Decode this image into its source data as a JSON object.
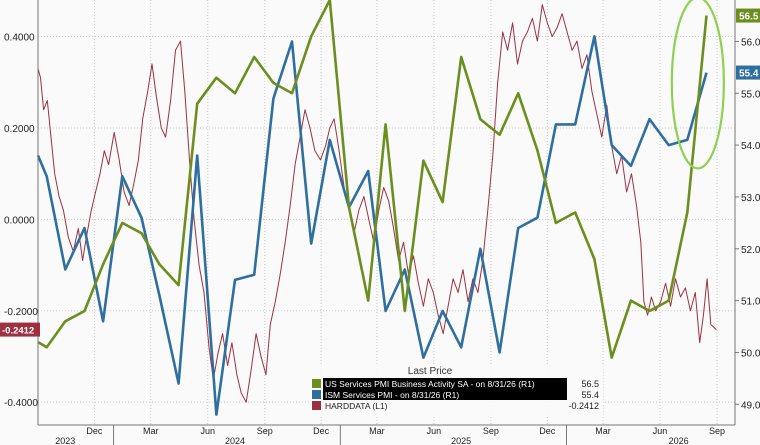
{
  "chart_data": {
    "type": "line",
    "x_range": [
      "2023-09-01",
      "2026-09-30"
    ],
    "left_axis": {
      "ticks": [
        0.4,
        0.2,
        0.0,
        -0.2,
        -0.4
      ],
      "tick_labels": [
        "0.4000",
        "0.2000",
        "0.0000",
        "-0.2000",
        "-0.4000"
      ],
      "range": [
        -0.45,
        0.48
      ]
    },
    "right_axis": {
      "ticks": [
        56.0,
        55.0,
        54.0,
        53.0,
        52.0,
        51.0,
        50.0,
        49.0
      ],
      "tick_labels": [
        "56.0",
        "55.0",
        "54.0",
        "53.0",
        "52.0",
        "51.0",
        "50.0",
        "49.0"
      ],
      "range": [
        48.6,
        56.8
      ]
    },
    "x_month_ticks": [
      {
        "date": "2023-12-01",
        "label": "Dec"
      },
      {
        "date": "2024-03-01",
        "label": "Mar"
      },
      {
        "date": "2024-06-01",
        "label": "Jun"
      },
      {
        "date": "2024-09-01",
        "label": "Sep"
      },
      {
        "date": "2024-12-01",
        "label": "Dec"
      },
      {
        "date": "2025-03-01",
        "label": "Mar"
      },
      {
        "date": "2025-06-01",
        "label": "Jun"
      },
      {
        "date": "2025-09-01",
        "label": "Sep"
      },
      {
        "date": "2025-12-01",
        "label": "Dec"
      },
      {
        "date": "2026-03-01",
        "label": "Mar"
      },
      {
        "date": "2026-06-01",
        "label": "Jun"
      },
      {
        "date": "2026-09-01",
        "label": "Sep"
      }
    ],
    "x_year_ticks": [
      {
        "date": "2023-10-15",
        "label": "2023"
      },
      {
        "date": "2024-07-15",
        "label": "2024"
      },
      {
        "date": "2025-07-15",
        "label": "2025"
      },
      {
        "date": "2026-07-01",
        "label": "2026"
      }
    ],
    "year_boundaries": [
      "2024-01-01",
      "2025-01-01",
      "2026-01-01"
    ],
    "series": [
      {
        "name": "US Services PMI Business Activity SA - on 8/31/26 (R1)",
        "axis": "right",
        "color": "#6b8e1f",
        "last_value": "56.5",
        "points": [
          [
            "2023-09-01",
            50.2
          ],
          [
            "2023-09-15",
            50.1
          ],
          [
            "2023-10-15",
            50.6
          ],
          [
            "2023-11-15",
            50.8
          ],
          [
            "2023-12-15",
            51.7
          ],
          [
            "2024-01-15",
            52.5
          ],
          [
            "2024-02-15",
            52.3
          ],
          [
            "2024-03-15",
            51.7
          ],
          [
            "2024-04-15",
            51.3
          ],
          [
            "2024-05-15",
            54.8
          ],
          [
            "2024-06-15",
            55.3
          ],
          [
            "2024-07-15",
            55.0
          ],
          [
            "2024-08-15",
            55.7
          ],
          [
            "2024-09-15",
            55.2
          ],
          [
            "2024-10-15",
            55.0
          ],
          [
            "2024-11-15",
            56.1
          ],
          [
            "2024-12-15",
            56.8
          ],
          [
            "2025-01-15",
            52.8
          ],
          [
            "2025-02-15",
            51.0
          ],
          [
            "2025-03-15",
            54.4
          ],
          [
            "2025-04-15",
            50.8
          ],
          [
            "2025-05-15",
            53.7
          ],
          [
            "2025-06-15",
            52.9
          ],
          [
            "2025-07-15",
            55.7
          ],
          [
            "2025-08-15",
            54.5
          ],
          [
            "2025-09-15",
            54.2
          ],
          [
            "2025-10-15",
            55.0
          ],
          [
            "2025-11-15",
            53.9
          ],
          [
            "2025-12-15",
            52.5
          ],
          [
            "2026-01-15",
            52.7
          ],
          [
            "2026-02-15",
            51.8
          ],
          [
            "2026-03-15",
            49.9
          ],
          [
            "2026-04-15",
            51.0
          ],
          [
            "2026-05-15",
            50.8
          ],
          [
            "2026-06-15",
            51.0
          ],
          [
            "2026-07-15",
            52.7
          ],
          [
            "2026-08-15",
            56.5
          ]
        ]
      },
      {
        "name": "ISM Services PMI - on 8/31/26 (R1)",
        "axis": "right",
        "color": "#2e6f9f",
        "last_value": "55.4",
        "points": [
          [
            "2023-09-01",
            53.8
          ],
          [
            "2023-09-15",
            53.4
          ],
          [
            "2023-10-15",
            51.6
          ],
          [
            "2023-11-15",
            52.4
          ],
          [
            "2023-12-15",
            50.6
          ],
          [
            "2024-01-15",
            53.4
          ],
          [
            "2024-02-15",
            52.6
          ],
          [
            "2024-03-15",
            51.1
          ],
          [
            "2024-04-15",
            49.4
          ],
          [
            "2024-05-15",
            53.8
          ],
          [
            "2024-06-15",
            48.8
          ],
          [
            "2024-07-15",
            51.4
          ],
          [
            "2024-08-15",
            51.5
          ],
          [
            "2024-09-15",
            54.9
          ],
          [
            "2024-10-15",
            56.0
          ],
          [
            "2024-11-15",
            52.1
          ],
          [
            "2024-12-15",
            54.1
          ],
          [
            "2025-01-15",
            52.8
          ],
          [
            "2025-02-15",
            53.5
          ],
          [
            "2025-03-15",
            50.8
          ],
          [
            "2025-04-15",
            51.6
          ],
          [
            "2025-05-15",
            49.9
          ],
          [
            "2025-06-15",
            50.8
          ],
          [
            "2025-07-15",
            50.1
          ],
          [
            "2025-08-15",
            52.0
          ],
          [
            "2025-09-15",
            50.0
          ],
          [
            "2025-10-15",
            52.4
          ],
          [
            "2025-11-15",
            52.6
          ],
          [
            "2025-12-15",
            54.4
          ],
          [
            "2026-01-15",
            54.4
          ],
          [
            "2026-02-15",
            56.1
          ],
          [
            "2026-03-15",
            54.0
          ],
          [
            "2026-04-15",
            53.6
          ],
          [
            "2026-05-15",
            54.5
          ],
          [
            "2026-06-15",
            54.0
          ],
          [
            "2026-07-15",
            54.1
          ],
          [
            "2026-08-15",
            55.4
          ]
        ]
      },
      {
        "name": "HARDDATA (L1)",
        "axis": "left",
        "color": "#9b3142",
        "last_value": "-0.2412",
        "points": [
          [
            "2023-09-01",
            0.33
          ],
          [
            "2023-09-05",
            0.31
          ],
          [
            "2023-09-10",
            0.24
          ],
          [
            "2023-09-16",
            0.26
          ],
          [
            "2023-09-22",
            0.18
          ],
          [
            "2023-09-28",
            0.1
          ],
          [
            "2023-10-05",
            0.05
          ],
          [
            "2023-10-12",
            0.02
          ],
          [
            "2023-10-20",
            -0.04
          ],
          [
            "2023-10-28",
            -0.07
          ],
          [
            "2023-11-05",
            -0.02
          ],
          [
            "2023-11-12",
            -0.09
          ],
          [
            "2023-11-18",
            -0.04
          ],
          [
            "2023-11-26",
            0.02
          ],
          [
            "2023-12-03",
            0.06
          ],
          [
            "2023-12-10",
            0.1
          ],
          [
            "2023-12-17",
            0.15
          ],
          [
            "2023-12-24",
            0.12
          ],
          [
            "2024-01-02",
            0.19
          ],
          [
            "2024-01-10",
            0.13
          ],
          [
            "2024-01-18",
            0.06
          ],
          [
            "2024-01-26",
            0.03
          ],
          [
            "2024-02-03",
            0.08
          ],
          [
            "2024-02-10",
            0.13
          ],
          [
            "2024-02-17",
            0.22
          ],
          [
            "2024-02-25",
            0.28
          ],
          [
            "2024-03-03",
            0.34
          ],
          [
            "2024-03-10",
            0.27
          ],
          [
            "2024-03-18",
            0.2
          ],
          [
            "2024-03-25",
            0.18
          ],
          [
            "2024-04-02",
            0.26
          ],
          [
            "2024-04-10",
            0.37
          ],
          [
            "2024-04-18",
            0.39
          ],
          [
            "2024-04-25",
            0.28
          ],
          [
            "2024-05-03",
            0.12
          ],
          [
            "2024-05-10",
            0.0
          ],
          [
            "2024-05-18",
            -0.1
          ],
          [
            "2024-05-26",
            -0.16
          ],
          [
            "2024-06-03",
            -0.28
          ],
          [
            "2024-06-10",
            -0.35
          ],
          [
            "2024-06-18",
            -0.29
          ],
          [
            "2024-06-25",
            -0.25
          ],
          [
            "2024-07-03",
            -0.32
          ],
          [
            "2024-07-10",
            -0.27
          ],
          [
            "2024-07-18",
            -0.34
          ],
          [
            "2024-07-25",
            -0.38
          ],
          [
            "2024-08-02",
            -0.4
          ],
          [
            "2024-08-10",
            -0.33
          ],
          [
            "2024-08-18",
            -0.25
          ],
          [
            "2024-08-26",
            -0.3
          ],
          [
            "2024-09-03",
            -0.34
          ],
          [
            "2024-09-10",
            -0.23
          ],
          [
            "2024-09-18",
            -0.18
          ],
          [
            "2024-09-26",
            -0.12
          ],
          [
            "2024-10-04",
            -0.05
          ],
          [
            "2024-10-12",
            0.03
          ],
          [
            "2024-10-20",
            0.12
          ],
          [
            "2024-10-28",
            0.18
          ],
          [
            "2024-11-05",
            0.24
          ],
          [
            "2024-11-13",
            0.2
          ],
          [
            "2024-11-21",
            0.15
          ],
          [
            "2024-11-30",
            0.13
          ],
          [
            "2024-12-08",
            0.16
          ],
          [
            "2024-12-15",
            0.2
          ],
          [
            "2024-12-22",
            0.22
          ],
          [
            "2024-12-30",
            0.15
          ],
          [
            "2025-01-07",
            0.07
          ],
          [
            "2025-01-15",
            0.02
          ],
          [
            "2025-01-23",
            -0.03
          ],
          [
            "2025-01-31",
            0.02
          ],
          [
            "2025-02-08",
            0.05
          ],
          [
            "2025-02-16",
            0.0
          ],
          [
            "2025-02-24",
            -0.05
          ],
          [
            "2025-03-04",
            0.02
          ],
          [
            "2025-03-12",
            0.07
          ],
          [
            "2025-03-20",
            0.04
          ],
          [
            "2025-03-28",
            -0.02
          ],
          [
            "2025-04-05",
            -0.09
          ],
          [
            "2025-04-13",
            -0.05
          ],
          [
            "2025-04-21",
            -0.12
          ],
          [
            "2025-04-29",
            -0.08
          ],
          [
            "2025-05-07",
            -0.14
          ],
          [
            "2025-05-15",
            -0.19
          ],
          [
            "2025-05-23",
            -0.13
          ],
          [
            "2025-05-31",
            -0.16
          ],
          [
            "2025-06-08",
            -0.21
          ],
          [
            "2025-06-16",
            -0.25
          ],
          [
            "2025-06-24",
            -0.19
          ],
          [
            "2025-07-02",
            -0.13
          ],
          [
            "2025-07-10",
            -0.16
          ],
          [
            "2025-07-18",
            -0.11
          ],
          [
            "2025-07-26",
            -0.18
          ],
          [
            "2025-08-03",
            -0.13
          ],
          [
            "2025-08-11",
            -0.16
          ],
          [
            "2025-08-19",
            -0.09
          ],
          [
            "2025-08-27",
            0.02
          ],
          [
            "2025-09-04",
            0.14
          ],
          [
            "2025-09-12",
            0.3
          ],
          [
            "2025-09-20",
            0.41
          ],
          [
            "2025-09-28",
            0.37
          ],
          [
            "2025-10-06",
            0.43
          ],
          [
            "2025-10-14",
            0.34
          ],
          [
            "2025-10-22",
            0.39
          ],
          [
            "2025-10-30",
            0.41
          ],
          [
            "2025-11-07",
            0.44
          ],
          [
            "2025-11-15",
            0.39
          ],
          [
            "2025-11-23",
            0.47
          ],
          [
            "2025-12-01",
            0.43
          ],
          [
            "2025-12-09",
            0.4
          ],
          [
            "2025-12-17",
            0.42
          ],
          [
            "2025-12-25",
            0.45
          ],
          [
            "2026-01-02",
            0.41
          ],
          [
            "2026-01-10",
            0.37
          ],
          [
            "2026-01-18",
            0.39
          ],
          [
            "2026-01-26",
            0.33
          ],
          [
            "2026-02-03",
            0.36
          ],
          [
            "2026-02-11",
            0.28
          ],
          [
            "2026-02-19",
            0.23
          ],
          [
            "2026-02-27",
            0.18
          ],
          [
            "2026-03-07",
            0.25
          ],
          [
            "2026-03-15",
            0.16
          ],
          [
            "2026-03-23",
            0.1
          ],
          [
            "2026-03-31",
            0.14
          ],
          [
            "2026-04-08",
            0.06
          ],
          [
            "2026-04-16",
            0.1
          ],
          [
            "2026-04-24",
            0.03
          ],
          [
            "2026-05-01",
            -0.05
          ],
          [
            "2026-05-06",
            -0.18
          ],
          [
            "2026-05-12",
            -0.21
          ],
          [
            "2026-05-18",
            -0.17
          ],
          [
            "2026-05-25",
            -0.2
          ],
          [
            "2026-06-02",
            -0.18
          ],
          [
            "2026-06-10",
            -0.14
          ],
          [
            "2026-06-18",
            -0.19
          ],
          [
            "2026-06-26",
            -0.13
          ],
          [
            "2026-07-04",
            -0.17
          ],
          [
            "2026-07-12",
            -0.15
          ],
          [
            "2026-07-20",
            -0.2
          ],
          [
            "2026-07-28",
            -0.16
          ],
          [
            "2026-08-04",
            -0.27
          ],
          [
            "2026-08-10",
            -0.21
          ],
          [
            "2026-08-16",
            -0.13
          ],
          [
            "2026-08-22",
            -0.23
          ],
          [
            "2026-08-31",
            -0.2412
          ]
        ]
      }
    ],
    "legend": {
      "title": "Last Price",
      "placement": "bottom-center",
      "entries": [
        {
          "label": "US Services PMI Business Activity SA - on 8/31/26 (R1)",
          "value": "56.5",
          "color": "#6b8e1f"
        },
        {
          "label": "ISM Services PMI - on 8/31/26 (R1)",
          "value": "55.4",
          "color": "#2e6f9f"
        },
        {
          "label": "HARDDATA (L1)",
          "value": "-0.2412",
          "color": "#9b3142"
        }
      ]
    },
    "annotations": {
      "highlight_ellipse": {
        "color": "#8fd14f",
        "center": [
          "2026-08-01",
          55.2
        ],
        "x_radius_days": 42,
        "y_radius": 1.65
      }
    },
    "grid": true
  }
}
